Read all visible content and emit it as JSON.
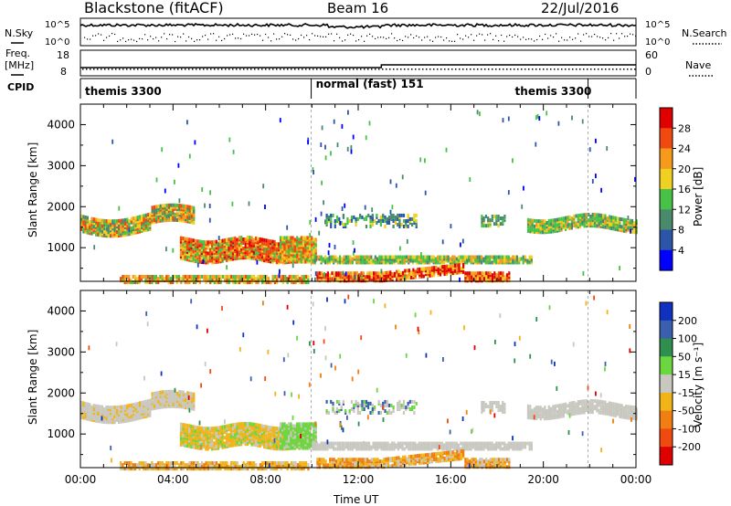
{
  "header": {
    "station": "Blackstone (fitACF)",
    "beam": "Beam 16",
    "date": "22/Jul/2016"
  },
  "left_labels": {
    "nsky": "N.Sky",
    "freq": "Freq.",
    "freq_unit": "[MHz]",
    "cpid": "CPID"
  },
  "right_labels": {
    "nsearch": "N.Search",
    "nave": "Nave"
  },
  "scales": {
    "noise_top": "10^5",
    "noise_bottom": "10^0",
    "freq_top": "18",
    "freq_bottom": "8",
    "nave_top": "60",
    "nave_bottom": "0"
  },
  "cpid_segments": [
    {
      "label": "themis 3300",
      "start_hour": 0,
      "end_hour": 9.97
    },
    {
      "label": "normal (fast) 151",
      "start_hour": 9.97,
      "end_hour": 21.93
    },
    {
      "label": "themis 3300",
      "start_hour": 21.93,
      "end_hour": 24
    }
  ],
  "chart_data": [
    {
      "type": "heatmap",
      "name": "power",
      "ylabel": "Slant Range [km]",
      "xlabel": "",
      "xlim": [
        0,
        24
      ],
      "ylim": [
        180,
        4500
      ],
      "yticks": [
        "1000",
        "2000",
        "3000",
        "4000"
      ],
      "ytick_values": [
        1000,
        2000,
        3000,
        4000
      ],
      "colorbar": {
        "label": "Power [dB]",
        "ticks": [
          "4",
          "8",
          "12",
          "16",
          "20",
          "24",
          "28"
        ],
        "colors": [
          "#0000ff",
          "#2c55a8",
          "#4a8a6c",
          "#47c247",
          "#f0d020",
          "#f59a1a",
          "#f04a10",
          "#e00000"
        ]
      }
    },
    {
      "type": "heatmap",
      "name": "velocity",
      "ylabel": "Slant Range [km]",
      "xlabel": "Time UT",
      "xlim": [
        0,
        24
      ],
      "ylim": [
        180,
        4500
      ],
      "yticks": [
        "1000",
        "2000",
        "3000",
        "4000"
      ],
      "ytick_values": [
        1000,
        2000,
        3000,
        4000
      ],
      "xticks": [
        "00:00",
        "04:00",
        "08:00",
        "12:00",
        "16:00",
        "20:00",
        "00:00"
      ],
      "colorbar": {
        "label": "Velocity [m s⁻¹]",
        "ticks": [
          "200",
          "100",
          "50",
          "15",
          "-15",
          "-50",
          "-100",
          "-200"
        ],
        "colors": [
          "#1030c0",
          "#3a5fae",
          "#2f8f4f",
          "#6cd640",
          "#c8c8c0",
          "#f0b418",
          "#f07e10",
          "#f04a10",
          "#e00000"
        ]
      }
    }
  ],
  "colors": {
    "velocity_ground": "#c8c8c0"
  }
}
